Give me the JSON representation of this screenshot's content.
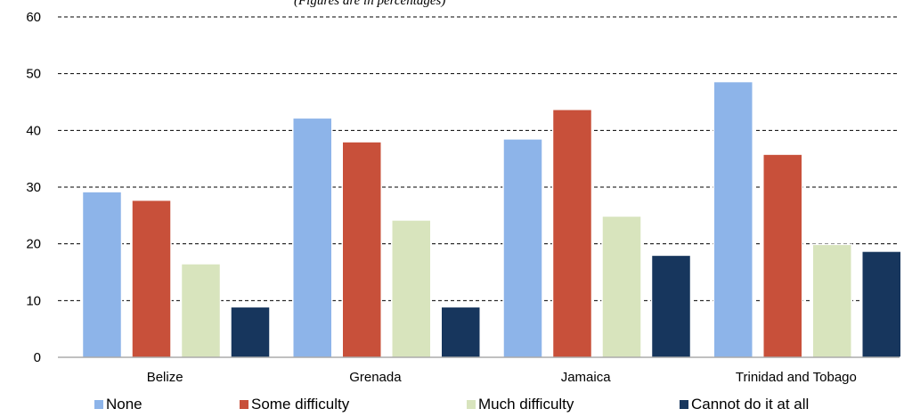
{
  "chart_data": {
    "type": "bar",
    "title": "(Figures are in percentages)",
    "categories": [
      "Belize",
      "Grenada",
      "Jamaica",
      "Trinidad and Tobago"
    ],
    "series": [
      {
        "name": "None",
        "color": "#8DB4E9",
        "values": [
          29.2,
          42.2,
          38.5,
          48.6
        ]
      },
      {
        "name": "Some difficulty",
        "color": "#C8503A",
        "values": [
          27.7,
          38.0,
          43.7,
          35.8
        ]
      },
      {
        "name": "Much difficulty",
        "color": "#D8E4BD",
        "values": [
          16.5,
          24.2,
          24.9,
          19.9
        ]
      },
      {
        "name": "Cannot do it at all",
        "color": "#17365D",
        "values": [
          8.9,
          8.9,
          18.0,
          18.7
        ]
      }
    ],
    "ylim": [
      0,
      60
    ],
    "yticks": [
      0,
      10,
      20,
      30,
      40,
      50,
      60
    ],
    "grid": "dashed horizontal",
    "legend": "bottom"
  }
}
